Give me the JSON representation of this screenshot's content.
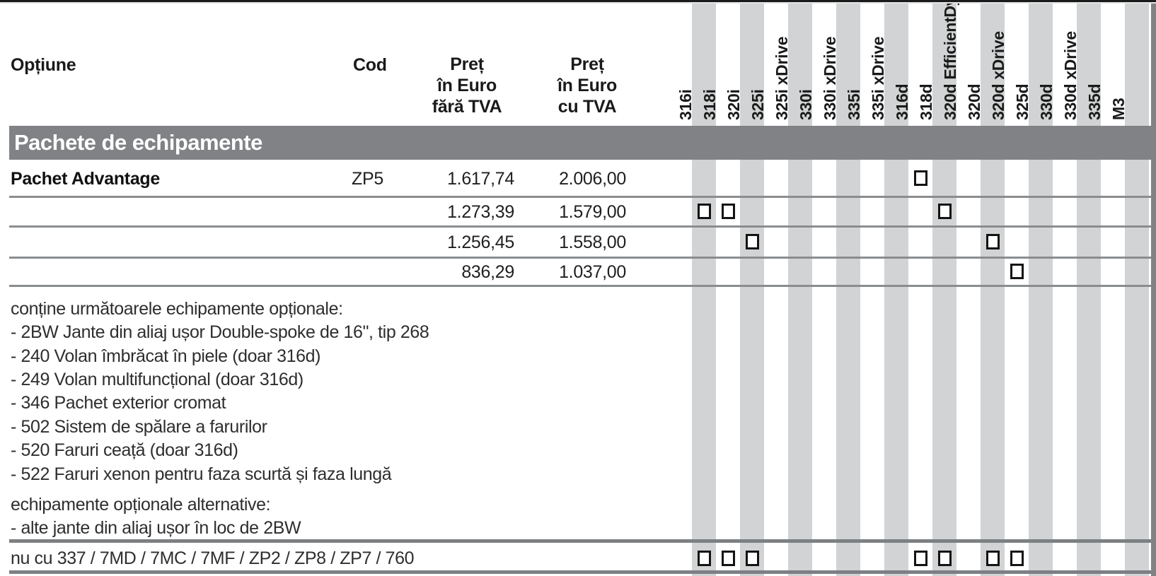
{
  "theme": {
    "stripe_gray": "#d1d3d4",
    "band_gray": "#808285",
    "rule_gray": "#8a8d8f",
    "text_black": "#1a1a1a"
  },
  "header": {
    "option_label": "Opțiune",
    "code_label": "Cod",
    "price_net": {
      "line1": "Preț",
      "line2": "în Euro",
      "line3": "fără TVA"
    },
    "price_gross": {
      "line1": "Preț",
      "line2": "în Euro",
      "line3": "cu TVA"
    },
    "models": [
      {
        "name": "316i",
        "shaded": true
      },
      {
        "name": "318i",
        "shaded": false
      },
      {
        "name": "320i",
        "shaded": true
      },
      {
        "name": "325i",
        "shaded": false
      },
      {
        "name": "325i xDrive",
        "shaded": true
      },
      {
        "name": "330i",
        "shaded": false
      },
      {
        "name": "330i xDrive",
        "shaded": true
      },
      {
        "name": "335i",
        "shaded": false
      },
      {
        "name": "335i xDrive",
        "shaded": true
      },
      {
        "name": "316d",
        "shaded": false
      },
      {
        "name": "318d",
        "shaded": true
      },
      {
        "name": "320d EfficientDynamics",
        "shaded": false
      },
      {
        "name": "320d",
        "shaded": true
      },
      {
        "name": "320d xDrive",
        "shaded": false
      },
      {
        "name": "325d",
        "shaded": true
      },
      {
        "name": "330d",
        "shaded": false
      },
      {
        "name": "330d xDrive",
        "shaded": true
      },
      {
        "name": "335d",
        "shaded": false
      },
      {
        "name": "M3",
        "shaded": true
      }
    ]
  },
  "section": {
    "title": "Pachete de echipamente"
  },
  "rows": [
    {
      "option": "Pachet Advantage",
      "code": "ZP5",
      "price_net": "1.617,74",
      "price_gross": "2.006,00",
      "checked_models": [
        "316d"
      ]
    },
    {
      "option": "",
      "code": "",
      "price_net": "1.273,39",
      "price_gross": "1.579,00",
      "checked_models": [
        "316i",
        "318i",
        "318d"
      ]
    },
    {
      "option": "",
      "code": "",
      "price_net": "1.256,45",
      "price_gross": "1.558,00",
      "checked_models": [
        "320i",
        "320d"
      ]
    },
    {
      "option": "",
      "code": "",
      "price_net": "836,29",
      "price_gross": "1.037,00",
      "checked_models": [
        "320d xDrive"
      ]
    }
  ],
  "details": {
    "contains_intro": "conține următoarele echipamente opționale:",
    "contains_items": [
      "- 2BW Jante din aliaj ușor Double-spoke de 16\", tip 268",
      "- 240 Volan îmbrăcat în piele (doar 316d)",
      "- 249 Volan multifuncțional (doar 316d)",
      "- 346 Pachet exterior cromat",
      "- 502 Sistem de spălare a farurilor",
      "- 520 Faruri ceață (doar 316d)",
      "- 522 Faruri xenon pentru faza scurtă și faza lungă"
    ],
    "alternatives_intro": "echipamente opționale alternative:",
    "alternatives_items": [
      "- alte jante din aliaj ușor în loc de 2BW"
    ]
  },
  "restriction": {
    "text": "nu cu 337 / 7MD / 7MC / 7MF / ZP2 / ZP8 / ZP7 / 760",
    "checked_models": [
      "316i",
      "318i",
      "320i",
      "316d",
      "318d",
      "320d",
      "320d xDrive"
    ]
  }
}
